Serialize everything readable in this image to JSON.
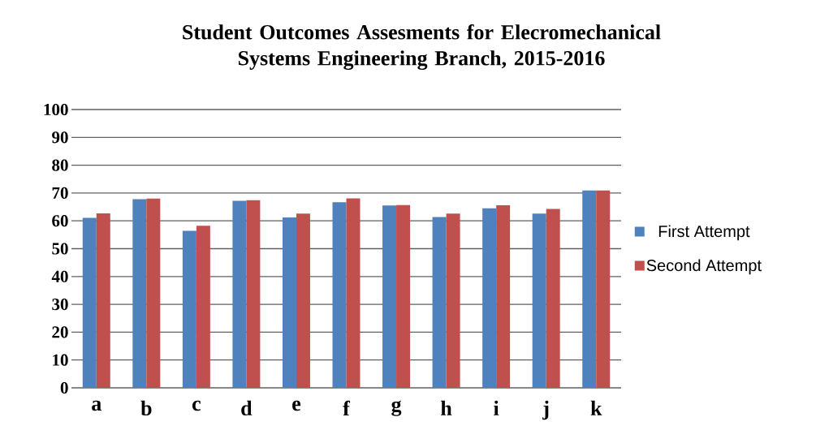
{
  "chart_data": {
    "type": "bar",
    "title": "Student Outcomes Assesments for Elecromechanical Systems Engineering Branch, 2015-2016",
    "categories": [
      "a",
      "b",
      "c",
      "d",
      "e",
      "f",
      "g",
      "h",
      "i",
      "j",
      "k"
    ],
    "series": [
      {
        "name": "First Attempt",
        "color": "#4f81bd",
        "values": [
          61.1,
          67.8,
          56.4,
          67.2,
          61.2,
          66.7,
          65.5,
          61.4,
          64.5,
          62.6,
          70.9
        ]
      },
      {
        "name": "Second Attempt",
        "color": "#c0504d",
        "values": [
          62.7,
          68.0,
          58.2,
          67.4,
          62.6,
          68.1,
          65.7,
          62.6,
          65.6,
          64.3,
          70.9
        ]
      }
    ],
    "ylim": [
      0,
      100
    ],
    "yticks": [
      0,
      10,
      20,
      30,
      40,
      50,
      60,
      70,
      80,
      90,
      100
    ],
    "grid": "y",
    "legend": "right"
  }
}
